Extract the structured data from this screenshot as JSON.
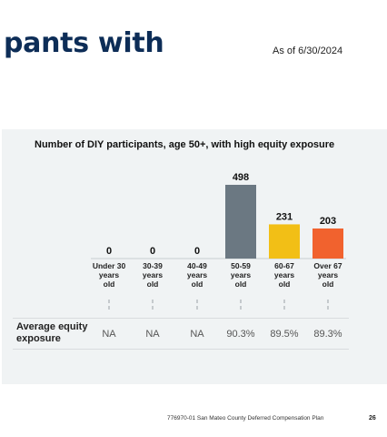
{
  "header": {
    "title": "pants with",
    "as_of": "As of 6/30/2024"
  },
  "chart_data": {
    "type": "bar",
    "title": "Number of DIY participants, age 50+, with high equity exposure",
    "categories": [
      "Under 30\nyears\nold",
      "30-39\nyears\nold",
      "40-49\nyears\nold",
      "50-59\nyears\nold",
      "60-67\nyears\nold",
      "Over 67\nyears\nold"
    ],
    "values": [
      0,
      0,
      0,
      498,
      231,
      203
    ],
    "value_labels": [
      "0",
      "0",
      "0",
      "498",
      "231",
      "203"
    ],
    "colors": [
      "#6b7882",
      "#6b7882",
      "#6b7882",
      "#6b7882",
      "#f2bf16",
      "#f1622e"
    ],
    "ylim": [
      0,
      498
    ],
    "grid": false
  },
  "equity_table": {
    "row_label": "Average equity exposure",
    "values": [
      "NA",
      "NA",
      "NA",
      "90.3%",
      "89.5%",
      "89.3%"
    ]
  },
  "footer": {
    "text": "776970-01 San Mateo County Deferred Compensation Plan",
    "page_number": "26"
  }
}
